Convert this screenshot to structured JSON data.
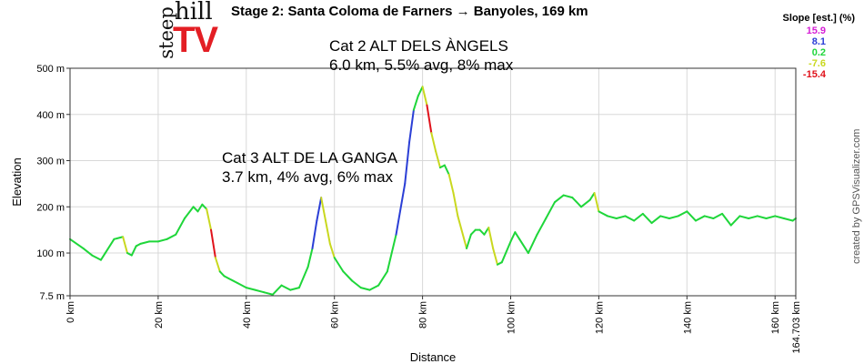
{
  "header": {
    "title": "Stage 2: Santa Coloma de Farners → Banyoles, 169 km"
  },
  "logo": {
    "line1": "steep",
    "line2": "hill",
    "line3": "TV"
  },
  "credit": "created by GPSVisualizer.com",
  "legend": {
    "title": "Slope [est.] (%)",
    "entries": [
      {
        "label": "15.9",
        "color": "#d61fd6"
      },
      {
        "label": "8.1",
        "color": "#2b3fd6"
      },
      {
        "label": "0.2",
        "color": "#1fd63a"
      },
      {
        "label": "-7.6",
        "color": "#c9d81f"
      },
      {
        "label": "-15.4",
        "color": "#e0121b"
      }
    ]
  },
  "annotations": [
    {
      "line1": "Cat 2 ALT DELS ÀNGELS",
      "line2": "6.0 km, 5.5% avg, 8% max"
    },
    {
      "line1": "Cat 3 ALT DE LA GANGA",
      "line2": "3.7 km, 4% avg, 6% max"
    }
  ],
  "chart_data": {
    "type": "line",
    "title": "Stage 2: Santa Coloma de Farners → Banyoles, 169 km",
    "xlabel": "Distance",
    "ylabel": "Elevation",
    "xlim": [
      0,
      164.703
    ],
    "ylim": [
      7.5,
      500
    ],
    "x_ticks": [
      {
        "value": 0,
        "label": "0 km"
      },
      {
        "value": 20,
        "label": "20 km"
      },
      {
        "value": 40,
        "label": "40 km"
      },
      {
        "value": 60,
        "label": "60 km"
      },
      {
        "value": 80,
        "label": "80 km"
      },
      {
        "value": 100,
        "label": "100 km"
      },
      {
        "value": 120,
        "label": "120 km"
      },
      {
        "value": 140,
        "label": "140 km"
      },
      {
        "value": 160,
        "label": "160 km"
      },
      {
        "value": 164.703,
        "label": "164.703 km"
      }
    ],
    "y_ticks": [
      {
        "value": 7.5,
        "label": "7.5 m"
      },
      {
        "value": 100,
        "label": "100 m"
      },
      {
        "value": 200,
        "label": "200 m"
      },
      {
        "value": 300,
        "label": "300 m"
      },
      {
        "value": 400,
        "label": "400 m"
      },
      {
        "value": 500,
        "label": "500 m"
      }
    ],
    "grid": true,
    "series": [
      {
        "x": [
          0,
          3,
          5,
          7,
          8,
          10,
          12,
          13,
          14,
          15,
          16,
          18,
          20,
          22,
          24,
          26,
          28,
          29,
          30,
          31,
          32,
          33,
          34,
          35,
          36,
          38,
          40,
          42,
          44,
          46,
          48,
          50,
          52,
          54,
          55,
          56,
          57,
          58,
          59,
          60,
          62,
          64,
          66,
          68,
          70,
          72,
          74,
          76,
          77,
          78,
          79,
          80,
          81,
          82,
          83,
          84,
          85,
          86,
          87,
          88,
          90,
          91,
          92,
          93,
          94,
          95,
          96,
          97,
          98,
          100,
          101,
          102,
          104,
          106,
          108,
          110,
          112,
          114,
          116,
          118,
          119,
          120,
          122,
          124,
          126,
          128,
          130,
          132,
          134,
          136,
          138,
          140,
          142,
          144,
          146,
          148,
          150,
          152,
          154,
          156,
          158,
          160,
          162,
          164,
          164.703
        ],
        "y": [
          130,
          110,
          95,
          85,
          100,
          130,
          135,
          100,
          95,
          115,
          120,
          125,
          125,
          130,
          140,
          175,
          200,
          190,
          205,
          195,
          150,
          90,
          60,
          50,
          45,
          35,
          25,
          20,
          15,
          10,
          30,
          20,
          25,
          70,
          110,
          170,
          220,
          170,
          120,
          90,
          60,
          40,
          25,
          20,
          30,
          60,
          140,
          250,
          340,
          410,
          440,
          460,
          420,
          360,
          320,
          285,
          290,
          270,
          230,
          180,
          110,
          140,
          150,
          150,
          140,
          155,
          110,
          75,
          80,
          125,
          145,
          130,
          100,
          140,
          175,
          210,
          225,
          220,
          200,
          215,
          230,
          190,
          180,
          175,
          180,
          170,
          185,
          165,
          180,
          175,
          180,
          190,
          170,
          180,
          175,
          185,
          160,
          180,
          175,
          180,
          175,
          180,
          175,
          170,
          175
        ]
      }
    ],
    "slope_colors": {
      "steep_up": "#2b3fd6",
      "flat": "#1fd63a",
      "down": "#c9d81f",
      "steep_down": "#e0121b"
    }
  }
}
